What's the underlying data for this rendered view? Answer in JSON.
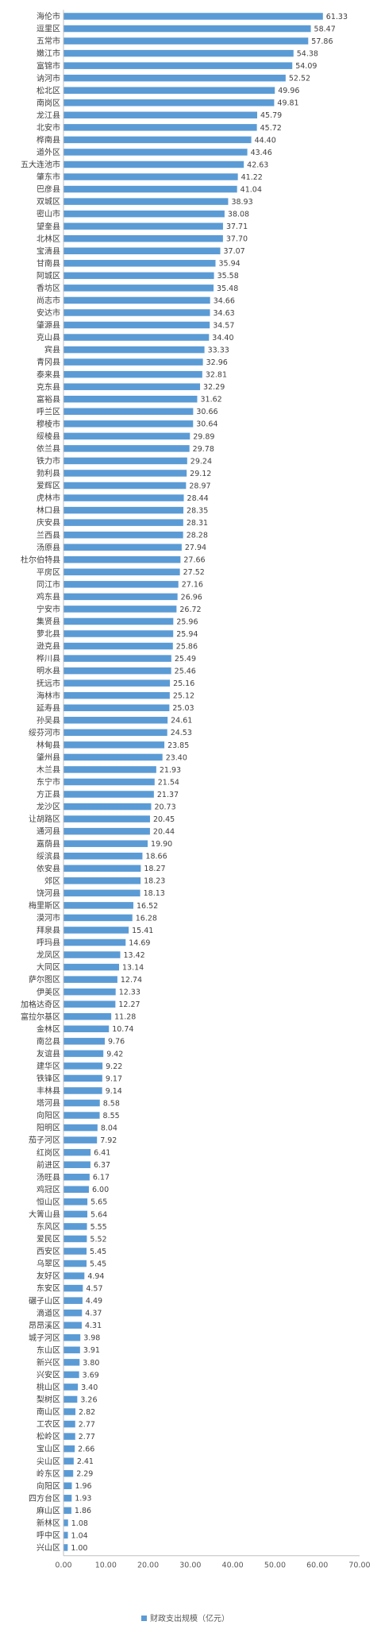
{
  "chart_data": {
    "type": "bar",
    "orientation": "horizontal",
    "categories": [
      "海伦市",
      "逗里区",
      "五常市",
      "嫩江市",
      "富锦市",
      "讷河市",
      "松北区",
      "南岗区",
      "龙江县",
      "北安市",
      "桦南县",
      "道外区",
      "五大连池市",
      "肇东市",
      "巴彦县",
      "双城区",
      "密山市",
      "望奎县",
      "北林区",
      "宝清县",
      "甘南县",
      "阿城区",
      "香坊区",
      "尚志市",
      "安达市",
      "肇源县",
      "克山县",
      "宾县",
      "青冈县",
      "泰来县",
      "克东县",
      "富裕县",
      "呼兰区",
      "穆棱市",
      "绥棱县",
      "依兰县",
      "铁力市",
      "勃利县",
      "爱辉区",
      "虎林市",
      "林口县",
      "庆安县",
      "兰西县",
      "汤原县",
      "杜尔伯特县",
      "平房区",
      "同江市",
      "鸡东县",
      "宁安市",
      "集贤县",
      "萝北县",
      "逊克县",
      "桦川县",
      "明水县",
      "抚远市",
      "海林市",
      "延寿县",
      "孙吴县",
      "绥芬河市",
      "林甸县",
      "肇州县",
      "木兰县",
      "东宁市",
      "方正县",
      "龙沙区",
      "让胡路区",
      "通河县",
      "嘉荫县",
      "绥滨县",
      "依安县",
      "郊区",
      "饶河县",
      "梅里斯区",
      "漠河市",
      "拜泉县",
      "呼玛县",
      "龙凤区",
      "大同区",
      "萨尔图区",
      "伊美区",
      "加格达奇区",
      "富拉尔基区",
      "金林区",
      "南岔县",
      "友谊县",
      "建华区",
      "铁锋区",
      "丰林县",
      "塔河县",
      "向阳区",
      "阳明区",
      "茄子河区",
      "红岗区",
      "前进区",
      "汤旺县",
      "鸡冠区",
      "恒山区",
      "大箐山县",
      "东风区",
      "爱民区",
      "西安区",
      "乌翠区",
      "友好区",
      "东安区",
      "碾子山区",
      "滴道区",
      "昂昂溪区",
      "城子河区",
      "东山区",
      "新兴区",
      "兴安区",
      "桃山区",
      "梨树区",
      "南山区",
      "工农区",
      "松岭区",
      "宝山区",
      "尖山区",
      "岭东区",
      "向阳区",
      "四方台区",
      "麻山区",
      "新林区",
      "呼中区",
      "兴山区"
    ],
    "values": [
      61.33,
      58.47,
      57.86,
      54.38,
      54.09,
      52.52,
      49.96,
      49.81,
      45.79,
      45.72,
      44.4,
      43.46,
      42.63,
      41.22,
      41.04,
      38.93,
      38.08,
      37.71,
      37.7,
      37.07,
      35.94,
      35.58,
      35.48,
      34.66,
      34.63,
      34.57,
      34.4,
      33.33,
      32.96,
      32.81,
      32.29,
      31.62,
      30.66,
      30.64,
      29.89,
      29.78,
      29.24,
      29.12,
      28.97,
      28.44,
      28.35,
      28.31,
      28.28,
      27.94,
      27.66,
      27.52,
      27.16,
      26.96,
      26.72,
      25.96,
      25.94,
      25.86,
      25.49,
      25.46,
      25.16,
      25.12,
      25.03,
      24.61,
      24.53,
      23.85,
      23.4,
      21.93,
      21.54,
      21.37,
      20.73,
      20.45,
      20.44,
      19.9,
      18.66,
      18.27,
      18.23,
      18.13,
      16.52,
      16.28,
      15.41,
      14.69,
      13.42,
      13.14,
      12.74,
      12.33,
      12.27,
      11.28,
      10.74,
      9.76,
      9.42,
      9.22,
      9.17,
      9.14,
      8.58,
      8.55,
      8.04,
      7.92,
      6.41,
      6.37,
      6.17,
      6.0,
      5.65,
      5.64,
      5.55,
      5.52,
      5.45,
      5.45,
      4.94,
      4.57,
      4.49,
      4.37,
      4.31,
      3.98,
      3.91,
      3.8,
      3.69,
      3.4,
      3.26,
      2.82,
      2.77,
      2.77,
      2.66,
      2.41,
      2.29,
      1.96,
      1.93,
      1.86,
      1.08,
      1.04,
      1.0
    ],
    "value_labels": [
      "61.33",
      "58.47",
      "57.86",
      "54.38",
      "54.09",
      "52.52",
      "49.96",
      "49.81",
      "45.79",
      "45.72",
      "44.40",
      "43.46",
      "42.63",
      "41.22",
      "41.04",
      "38.93",
      "38.08",
      "37.71",
      "37.70",
      "37.07",
      "35.94",
      "35.58",
      "35.48",
      "34.66",
      "34.63",
      "34.57",
      "34.40",
      "33.33",
      "32.96",
      "32.81",
      "32.29",
      "31.62",
      "30.66",
      "30.64",
      "29.89",
      "29.78",
      "29.24",
      "29.12",
      "28.97",
      "28.44",
      "28.35",
      "28.31",
      "28.28",
      "27.94",
      "27.66",
      "27.52",
      "27.16",
      "26.96",
      "26.72",
      "25.96",
      "25.94",
      "25.86",
      "25.49",
      "25.46",
      "25.16",
      "25.12",
      "25.03",
      "24.61",
      "24.53",
      "23.85",
      "23.40",
      "21.93",
      "21.54",
      "21.37",
      "20.73",
      "20.45",
      "20.44",
      "19.90",
      "18.66",
      "18.27",
      "18.23",
      "18.13",
      "16.52",
      "16.28",
      "15.41",
      "14.69",
      "13.42",
      "13.14",
      "12.74",
      "12.33",
      "12.27",
      "11.28",
      "10.74",
      "9.76",
      "9.42",
      "9.22",
      "9.17",
      "9.14",
      "8.58",
      "8.55",
      "8.04",
      "7.92",
      "6.41",
      "6.37",
      "6.17",
      "6.00",
      "5.65",
      "5.64",
      "5.55",
      "5.52",
      "5.45",
      "5.45",
      "4.94",
      "4.57",
      "4.49",
      "4.37",
      "4.31",
      "3.98",
      "3.91",
      "3.80",
      "3.69",
      "3.40",
      "3.26",
      "2.82",
      "2.77",
      "2.77",
      "2.66",
      "2.41",
      "2.29",
      "1.96",
      "1.93",
      "1.86",
      "1.08",
      "1.04",
      "1.00"
    ],
    "xlim": [
      0,
      70
    ],
    "xticks": [
      0,
      10,
      20,
      30,
      40,
      50,
      60,
      70
    ],
    "xtick_labels": [
      "0.00",
      "10.00",
      "20.00",
      "30.00",
      "40.00",
      "50.00",
      "60.00",
      "70.00"
    ],
    "series": [
      {
        "name": "财政支出规模（亿元）"
      }
    ],
    "bar_color": "#5b9bd5",
    "grid": false,
    "legend_position": "bottom"
  }
}
